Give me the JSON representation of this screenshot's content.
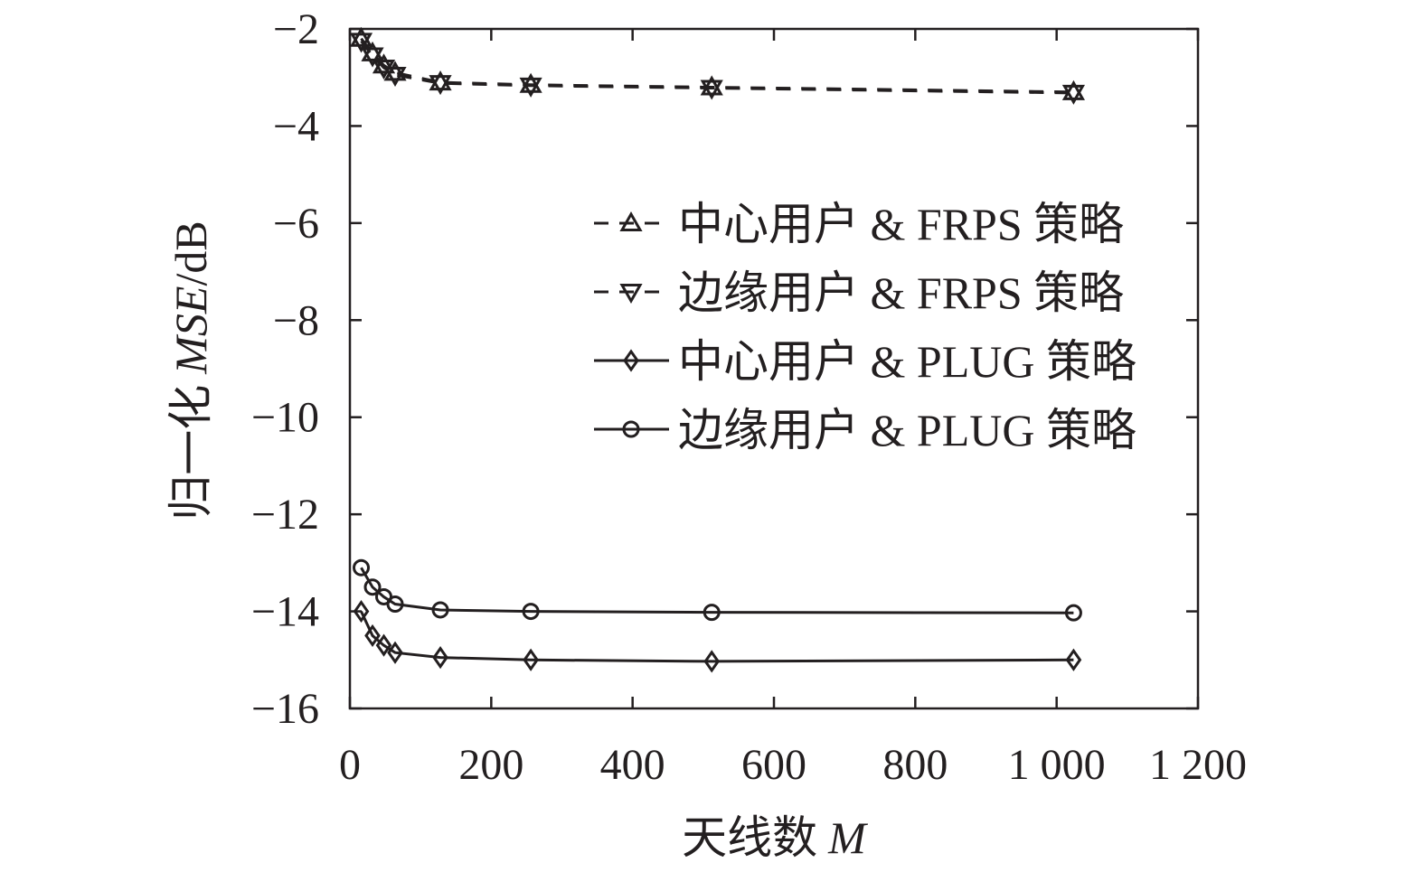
{
  "chart_data": {
    "type": "line",
    "title": "",
    "xlabel_text": "天线数",
    "xlabel_var": "M",
    "ylabel_prefix": "归一化",
    "ylabel_var": "MSE",
    "ylabel_unit": "/dB",
    "xlim": [
      0,
      1200
    ],
    "ylim": [
      -16,
      -2
    ],
    "xticks": [
      0,
      200,
      400,
      600,
      800,
      1000,
      1200
    ],
    "xtick_labels": [
      "0",
      "200",
      "400",
      "600",
      "800",
      "1 000",
      "1 200"
    ],
    "yticks": [
      -2,
      -4,
      -6,
      -8,
      -10,
      -12,
      -14,
      -16
    ],
    "ytick_labels": [
      "−2",
      "−4",
      "−6",
      "−8",
      "−10",
      "−12",
      "−14",
      "−16"
    ],
    "grid": false,
    "legend_position": "right",
    "x": [
      16,
      32,
      48,
      64,
      128,
      256,
      512,
      1024
    ],
    "series": [
      {
        "name": "中心用户 & FRPS 策略",
        "marker": "triangle-up",
        "line_style": "dashed",
        "values": [
          -2.2,
          -2.5,
          -2.75,
          -2.9,
          -3.1,
          -3.15,
          -3.2,
          -3.3
        ]
      },
      {
        "name": "边缘用户 & FRPS 策略",
        "marker": "triangle-down",
        "line_style": "dashed",
        "values": [
          -2.25,
          -2.55,
          -2.8,
          -2.95,
          -3.12,
          -3.17,
          -3.22,
          -3.32
        ]
      },
      {
        "name": "中心用户 & PLUG 策略",
        "marker": "diamond",
        "line_style": "solid",
        "values": [
          -14.0,
          -14.5,
          -14.7,
          -14.85,
          -14.95,
          -15.0,
          -15.03,
          -15.0
        ]
      },
      {
        "name": "边缘用户 & PLUG 策略",
        "marker": "circle",
        "line_style": "solid",
        "values": [
          -13.1,
          -13.5,
          -13.7,
          -13.85,
          -13.97,
          -14.0,
          -14.02,
          -14.03
        ]
      }
    ]
  }
}
